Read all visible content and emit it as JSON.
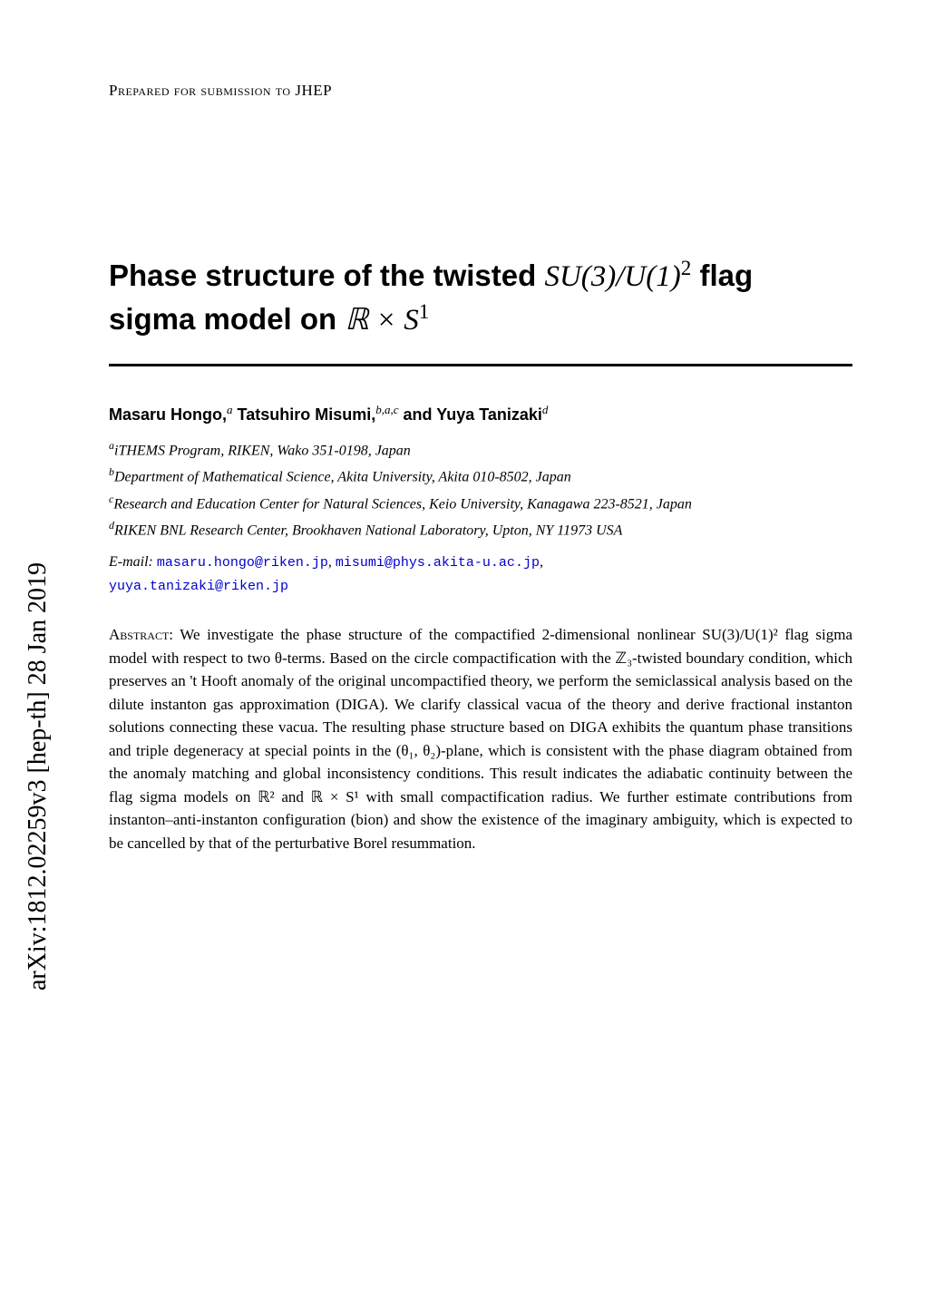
{
  "arxiv": {
    "id": "arXiv:1812.02259v3",
    "category": "[hep-th]",
    "date": "28 Jan 2019"
  },
  "header": {
    "prepared": "Prepared for submission to JHEP"
  },
  "title": {
    "line1_a": "Phase structure of the twisted ",
    "line1_math": "SU(3)/U(1)",
    "line1_exp": "2",
    "line1_b": " flag",
    "line2_a": "sigma model on ",
    "line2_math_R": "ℝ",
    "line2_times": " × ",
    "line2_math_S": "S",
    "line2_exp": "1"
  },
  "authors": {
    "a1_name": "Masaru Hongo,",
    "a1_aff": "a",
    "a2_name": " Tatsuhiro Misumi,",
    "a2_aff": "b,a,c",
    "a3_name": " and Yuya Tanizaki",
    "a3_aff": "d"
  },
  "affiliations": {
    "a": {
      "sup": "a",
      "text": "iTHEMS Program, RIKEN, Wako 351-0198, Japan"
    },
    "b": {
      "sup": "b",
      "text": "Department of Mathematical Science, Akita University, Akita 010-8502, Japan"
    },
    "c": {
      "sup": "c",
      "text": "Research and Education Center for Natural Sciences, Keio University, Kanagawa 223-8521, Japan"
    },
    "d": {
      "sup": "d",
      "text": "RIKEN BNL Research Center, Brookhaven National Laboratory, Upton, NY 11973 USA"
    }
  },
  "emails": {
    "label": "E-mail: ",
    "e1": "masaru.hongo@riken.jp",
    "sep1": ", ",
    "e2": "misumi@phys.akita-u.ac.jp",
    "sep2": ",",
    "e3": "yuya.tanizaki@riken.jp"
  },
  "abstract": {
    "label": "Abstract:",
    "body": "  We investigate the phase structure of the compactified 2-dimensional nonlinear SU(3)/U(1)² flag sigma model with respect to two θ-terms. Based on the circle compactification with the ℤ₃-twisted boundary condition, which preserves an 't Hooft anomaly of the original uncompactified theory, we perform the semiclassical analysis based on the dilute instanton gas approximation (DIGA). We clarify classical vacua of the theory and derive fractional instanton solutions connecting these vacua. The resulting phase structure based on DIGA exhibits the quantum phase transitions and triple degeneracy at special points in the (θ₁, θ₂)-plane, which is consistent with the phase diagram obtained from the anomaly matching and global inconsistency conditions. This result indicates the adiabatic continuity between the flag sigma models on ℝ² and ℝ × S¹ with small compactification radius. We further estimate contributions from instanton–anti-instanton configuration (bion) and show the existence of the imaginary ambiguity, which is expected to be cancelled by that of the perturbative Borel resummation."
  }
}
